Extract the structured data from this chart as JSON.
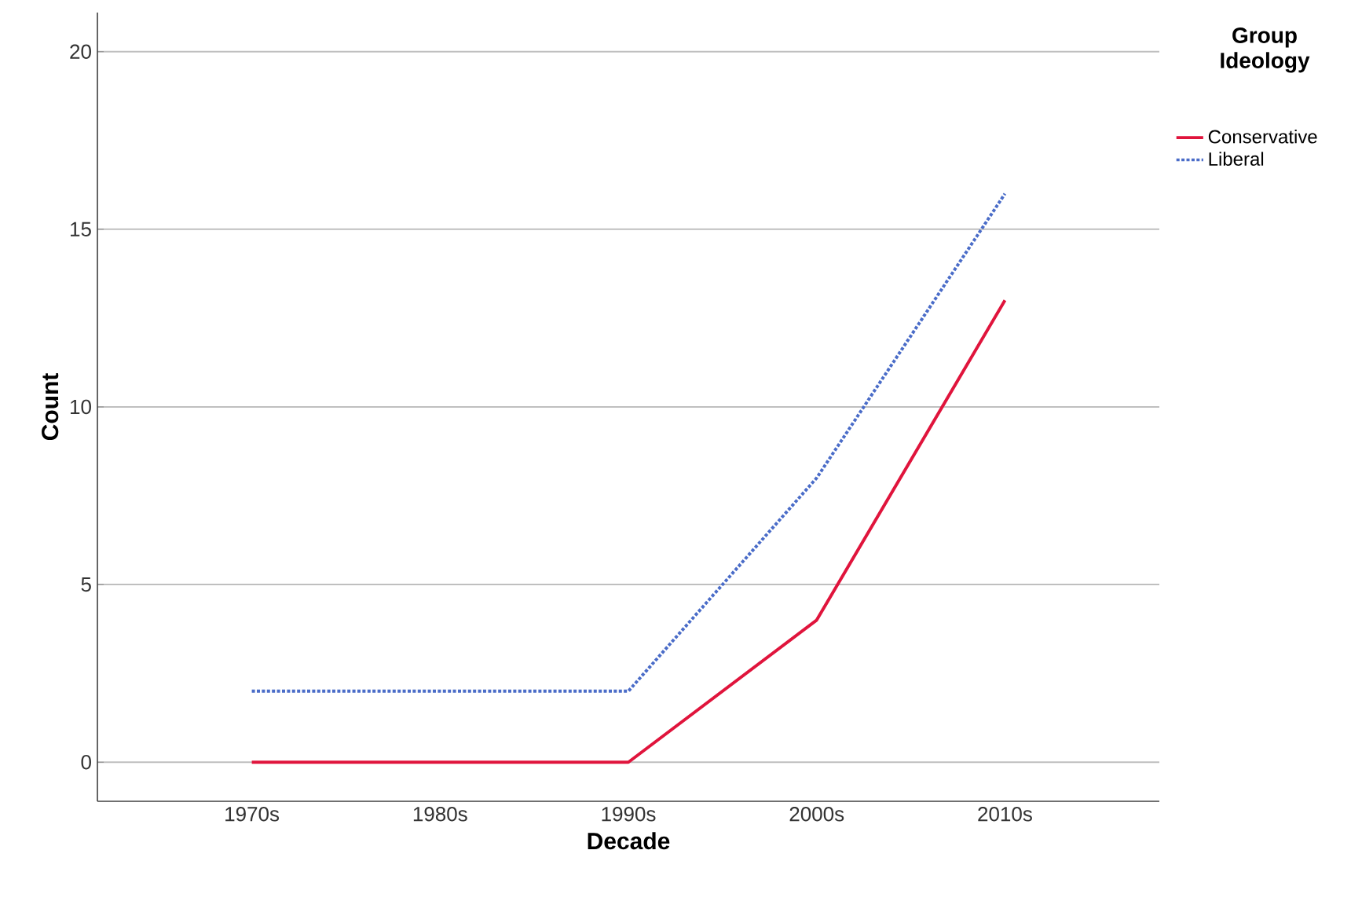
{
  "chart_data": {
    "type": "line",
    "xlabel": "Decade",
    "ylabel": "Count",
    "legend_title": "Group Ideology",
    "categories": [
      "1970s",
      "1980s",
      "1990s",
      "2000s",
      "2010s"
    ],
    "series": [
      {
        "name": "Conservative",
        "color": "#e0143c",
        "line_style": "solid",
        "values": [
          0,
          0,
          0,
          4,
          13
        ]
      },
      {
        "name": "Liberal",
        "color": "#4a6cc8",
        "line_style": "dotted",
        "values": [
          2,
          2,
          2,
          8,
          16
        ]
      }
    ],
    "ylim": [
      -1.1,
      21.1
    ],
    "yticks": [
      0,
      5,
      10,
      15,
      20
    ],
    "grid": "y",
    "legend": "top right",
    "marker": "none"
  }
}
